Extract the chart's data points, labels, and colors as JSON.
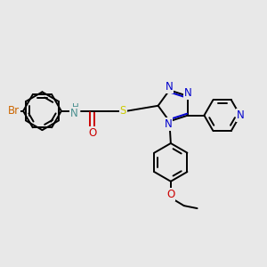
{
  "background_color": "#e8e8e8",
  "bond_color": "#000000",
  "n_color": "#0000cc",
  "o_color": "#cc0000",
  "s_color": "#cccc00",
  "br_color": "#cc6600",
  "h_color": "#4a9090",
  "figsize": [
    3.0,
    3.0
  ],
  "dpi": 100,
  "xlim": [
    0,
    10
  ],
  "ylim": [
    0,
    10
  ]
}
